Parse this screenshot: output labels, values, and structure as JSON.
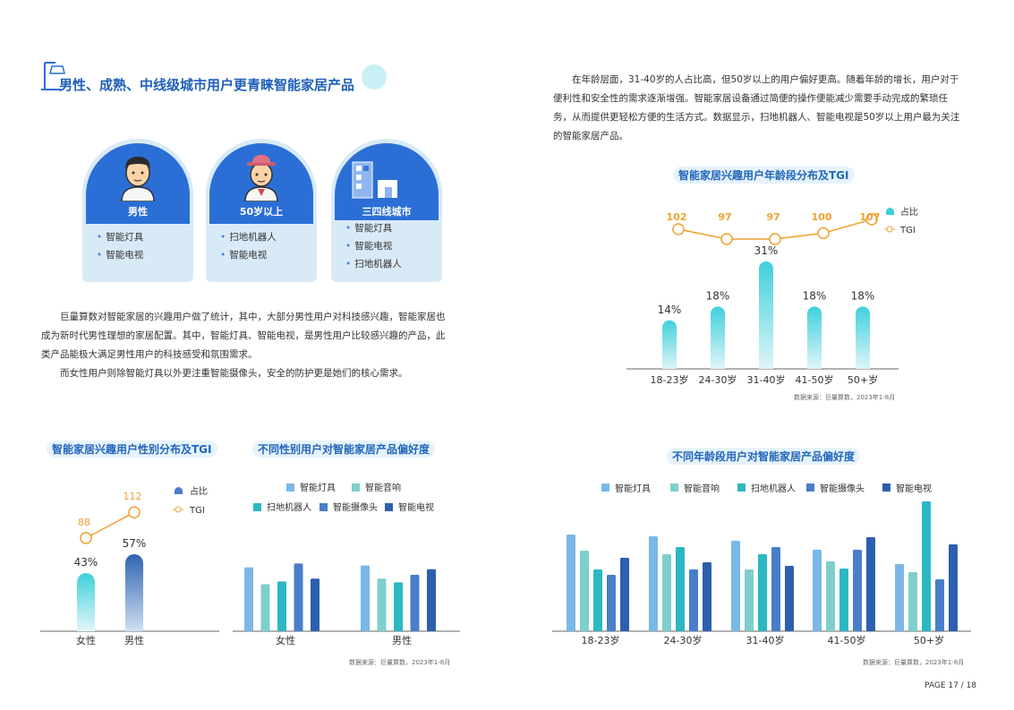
{
  "header": {
    "title": "男性、成熟、中线级城市用户更青睐智能家居产品"
  },
  "profiles": [
    {
      "label": "男性",
      "icon": "man-avatar-icon",
      "items": [
        "智能灯具",
        "智能电视"
      ]
    },
    {
      "label": "50岁以上",
      "icon": "elder-avatar-icon",
      "items": [
        "扫地机器人",
        "智能电视"
      ]
    },
    {
      "label": "三四线城市",
      "icon": "city-buildings-icon",
      "items": [
        "智能灯具",
        "智能电视",
        "扫地机器人"
      ]
    }
  ],
  "left_text": {
    "line1": "巨量算数对智能家居的兴趣用户做了统计，其中，大部分男性用户对科技感兴趣，智能家居也",
    "line2": "成为新时代男性理想的家居配置。其中，智能灯具、智能电视，是男性用户比较感兴趣的产品，此",
    "line3": "类产品能极大满足男性用户的科技感受和氛围需求。",
    "line4": "而女性用户则除智能灯具以外更注重智能摄像头，安全的防护更是她们的核心需求。"
  },
  "right_text": {
    "line1": "在年龄层面，31-40岁的人占比高，但50岁以上的用户偏好更高。随着年龄的增长，用户对于",
    "line2": "便利性和安全性的需求逐渐增强。智能家居设备通过简便的操作便能减少需要手动完成的繁琐任",
    "line3": "务，从而提供更轻松方便的生活方式。数据显示，扫地机器人、智能电视是50岁以上用户最为关注",
    "line4": "的智能家居产品。"
  },
  "source_text": "数据来源：巨量算数，2023年1-8月",
  "page_number": "PAGE 17 / 18",
  "colors": {
    "accent": "#1f5fb8",
    "tgi": "#f0a030",
    "products": [
      "#7ab8e8",
      "#7ecfcb",
      "#2bb8c0",
      "#4a7ec8",
      "#2d5faf"
    ]
  },
  "chart_data": [
    {
      "type": "bar",
      "title": "智能家居兴趣用户年龄段分布及TGI",
      "categories": [
        "18-23岁",
        "24-30岁",
        "31-40岁",
        "41-50岁",
        "50+岁"
      ],
      "series": [
        {
          "name": "占比",
          "values": [
            14,
            18,
            31,
            18,
            18
          ],
          "labels": [
            "14%",
            "18%",
            "31%",
            "18%",
            "18%"
          ]
        },
        {
          "name": "TGI",
          "type": "line",
          "values": [
            102,
            97,
            97,
            100,
            107
          ]
        }
      ]
    },
    {
      "type": "bar",
      "title": "智能家居兴趣用户性别分布及TGI",
      "categories": [
        "女性",
        "男性"
      ],
      "series": [
        {
          "name": "占比",
          "values": [
            43,
            57
          ],
          "labels": [
            "43%",
            "57%"
          ]
        },
        {
          "name": "TGI",
          "type": "line",
          "values": [
            88,
            112
          ]
        }
      ]
    },
    {
      "type": "bar",
      "title": "不同性别用户对智能家居产品偏好度",
      "categories": [
        "女性",
        "男性"
      ],
      "series": [
        {
          "name": "智能灯具",
          "values": [
            68,
            70
          ]
        },
        {
          "name": "智能音响",
          "values": [
            50,
            56
          ]
        },
        {
          "name": "扫地机器人",
          "values": [
            53,
            52
          ]
        },
        {
          "name": "智能摄像头",
          "values": [
            72,
            60
          ]
        },
        {
          "name": "智能电视",
          "values": [
            56,
            66
          ]
        }
      ]
    },
    {
      "type": "bar",
      "title": "不同年龄段用户对智能家居产品偏好度",
      "categories": [
        "18-23岁",
        "24-30岁",
        "31-40岁",
        "41-50岁",
        "50+岁"
      ],
      "series": [
        {
          "name": "智能灯具",
          "values": [
            108,
            106,
            101,
            91,
            75
          ]
        },
        {
          "name": "智能音响",
          "values": [
            90,
            86,
            69,
            78,
            66
          ]
        },
        {
          "name": "扫地机器人",
          "values": [
            69,
            94,
            86,
            70,
            145
          ]
        },
        {
          "name": "智能摄像头",
          "values": [
            63,
            69,
            94,
            91,
            58
          ]
        },
        {
          "name": "智能电视",
          "values": [
            82,
            77,
            73,
            105,
            97
          ]
        }
      ]
    }
  ]
}
